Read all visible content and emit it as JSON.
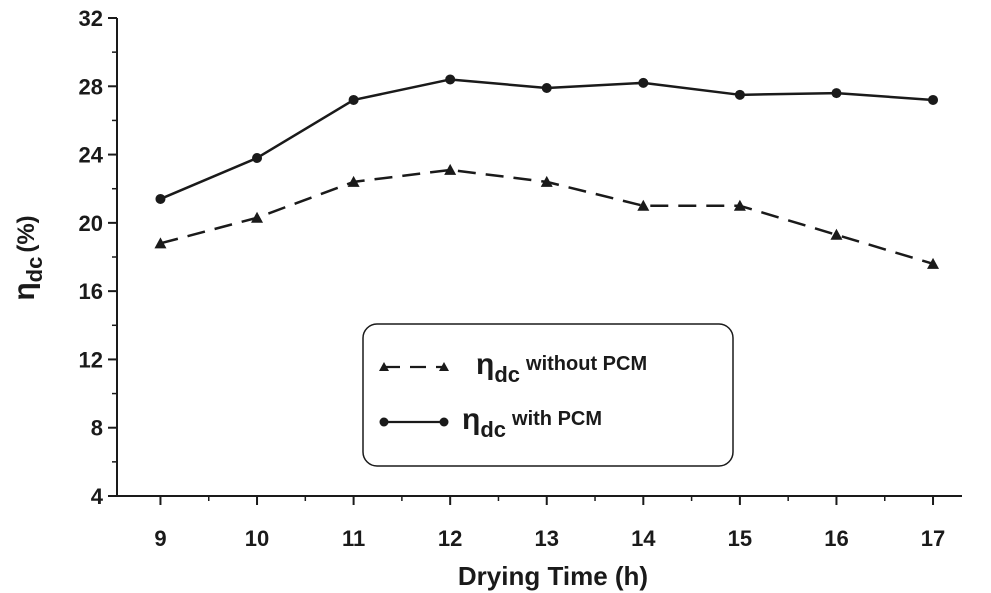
{
  "chart_data": {
    "type": "line",
    "title": "",
    "xlabel": "Drying Time (h)",
    "ylabel": {
      "symbol": "η",
      "subscript": "dc",
      "unit": "(%)"
    },
    "x": [
      9,
      10,
      11,
      12,
      13,
      14,
      15,
      16,
      17
    ],
    "xlim": [
      8.55,
      17.3
    ],
    "ylim": [
      4,
      32
    ],
    "yticks": [
      4,
      8,
      12,
      16,
      20,
      24,
      28,
      32
    ],
    "grid": false,
    "legend_position": "lower-center",
    "series": [
      {
        "name": "without PCM",
        "legend": {
          "symbol": "η",
          "subscript": "dc",
          "suffix": "without PCM"
        },
        "line_style": "dashed",
        "marker": "triangle",
        "color": "#1a1a1a",
        "values": [
          18.8,
          20.3,
          22.4,
          23.1,
          22.4,
          21.0,
          21.0,
          19.3,
          17.6
        ]
      },
      {
        "name": "with PCM",
        "legend": {
          "symbol": "η",
          "subscript": "dc",
          "suffix": "with PCM"
        },
        "line_style": "solid",
        "marker": "circle",
        "color": "#1a1a1a",
        "values": [
          21.4,
          23.8,
          27.2,
          28.4,
          27.9,
          28.2,
          27.5,
          27.6,
          27.2
        ]
      }
    ]
  }
}
